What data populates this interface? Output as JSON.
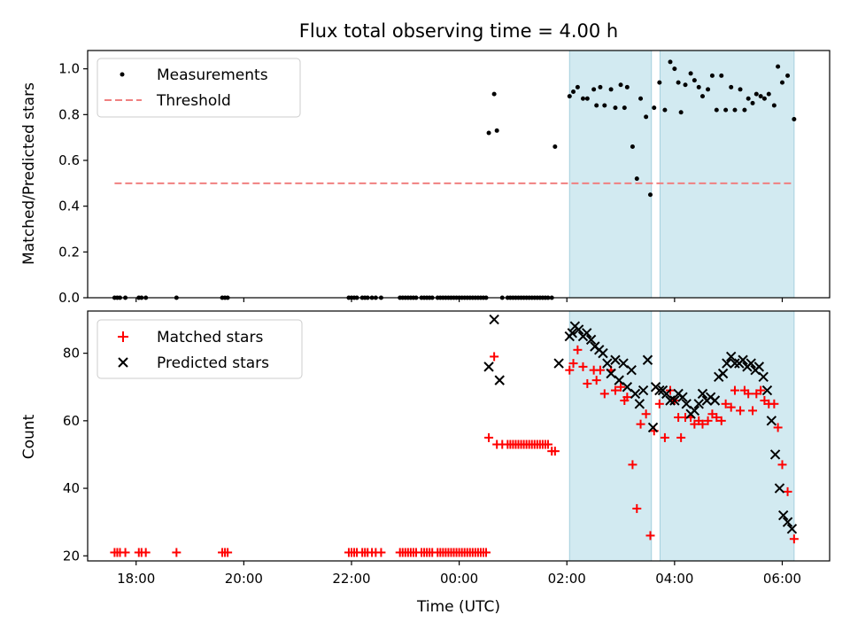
{
  "chart_data": [
    {
      "type": "scatter",
      "title": "Flux total observing time = 4.00 h",
      "xlabel": "",
      "ylabel": "Matched/Predicted stars",
      "xlim": [
        -6.9,
        6.88
      ],
      "ylim": [
        0.0,
        1.08
      ],
      "yticks": [
        0.0,
        0.2,
        0.4,
        0.6,
        0.8,
        1.0
      ],
      "ytick_labels": [
        "0.0",
        "0.2",
        "0.4",
        "0.6",
        "0.8",
        "1.0"
      ],
      "shaded_regions": [
        [
          2.05,
          3.57
        ],
        [
          3.73,
          6.22
        ]
      ],
      "series": [
        {
          "name": "Measurements",
          "marker": "dot",
          "color": "#000000",
          "x": [
            -6.4,
            -6.35,
            -6.3,
            -6.2,
            -5.95,
            -5.9,
            -5.82,
            -5.25,
            -4.4,
            -4.35,
            -4.3,
            -2.05,
            -2.0,
            -1.95,
            -1.9,
            -1.8,
            -1.75,
            -1.7,
            -1.62,
            -1.55,
            -1.45,
            -1.1,
            -1.05,
            -1.0,
            -0.95,
            -0.9,
            -0.85,
            -0.8,
            -0.7,
            -0.65,
            -0.6,
            -0.55,
            -0.5,
            -0.4,
            -0.35,
            -0.3,
            -0.25,
            -0.2,
            -0.15,
            -0.1,
            -0.05,
            0.0,
            0.05,
            0.1,
            0.15,
            0.2,
            0.25,
            0.3,
            0.35,
            0.4,
            0.45,
            0.5,
            0.55,
            0.65,
            0.7,
            0.8,
            0.9,
            0.95,
            1.0,
            1.05,
            1.1,
            1.15,
            1.2,
            1.25,
            1.3,
            1.35,
            1.4,
            1.45,
            1.5,
            1.55,
            1.6,
            1.65,
            1.72,
            1.78,
            2.05,
            2.12,
            2.2,
            2.3,
            2.38,
            2.5,
            2.55,
            2.62,
            2.7,
            2.82,
            2.9,
            3.0,
            3.07,
            3.12,
            3.22,
            3.3,
            3.37,
            3.47,
            3.55,
            3.62,
            3.72,
            3.82,
            3.92,
            4.0,
            4.07,
            4.12,
            4.2,
            4.3,
            4.37,
            4.45,
            4.52,
            4.62,
            4.7,
            4.78,
            4.87,
            4.95,
            5.05,
            5.12,
            5.22,
            5.3,
            5.37,
            5.45,
            5.52,
            5.6,
            5.67,
            5.75,
            5.85,
            5.92,
            6.0,
            6.1,
            6.22
          ],
          "y": [
            0.0,
            0.0,
            0.0,
            0.0,
            0.0,
            0.0,
            0.0,
            0.0,
            0.0,
            0.0,
            0.0,
            0.0,
            0.0,
            0.0,
            0.0,
            0.0,
            0.0,
            0.0,
            0.0,
            0.0,
            0.0,
            0.0,
            0.0,
            0.0,
            0.0,
            0.0,
            0.0,
            0.0,
            0.0,
            0.0,
            0.0,
            0.0,
            0.0,
            0.0,
            0.0,
            0.0,
            0.0,
            0.0,
            0.0,
            0.0,
            0.0,
            0.0,
            0.0,
            0.0,
            0.0,
            0.0,
            0.0,
            0.0,
            0.0,
            0.0,
            0.0,
            0.0,
            0.72,
            0.89,
            0.73,
            0.0,
            0.0,
            0.0,
            0.0,
            0.0,
            0.0,
            0.0,
            0.0,
            0.0,
            0.0,
            0.0,
            0.0,
            0.0,
            0.0,
            0.0,
            0.0,
            0.0,
            0.0,
            0.66,
            0.88,
            0.9,
            0.92,
            0.87,
            0.87,
            0.91,
            0.84,
            0.92,
            0.84,
            0.91,
            0.83,
            0.93,
            0.83,
            0.92,
            0.66,
            0.52,
            0.87,
            0.79,
            0.45,
            0.83,
            0.94,
            0.82,
            1.03,
            1.0,
            0.94,
            0.81,
            0.93,
            0.98,
            0.95,
            0.92,
            0.88,
            0.91,
            0.97,
            0.82,
            0.97,
            0.82,
            0.92,
            0.82,
            0.91,
            0.82,
            0.87,
            0.85,
            0.89,
            0.88,
            0.87,
            0.89,
            0.84,
            1.01,
            0.94,
            0.97,
            0.78
          ]
        },
        {
          "name": "Threshold",
          "line": "dashed",
          "color": "#f08080",
          "x": [
            -6.4,
            6.2
          ],
          "y": [
            0.5,
            0.5
          ]
        }
      ],
      "legend": {
        "position": "top-left",
        "entries": [
          "Measurements",
          "Threshold"
        ]
      }
    },
    {
      "type": "scatter",
      "title": "",
      "xlabel": "Time (UTC)",
      "ylabel": "Count",
      "xlim": [
        -6.9,
        6.88
      ],
      "ylim": [
        18.5,
        92.5
      ],
      "yticks": [
        20,
        40,
        60,
        80
      ],
      "ytick_labels": [
        "20",
        "40",
        "60",
        "80"
      ],
      "xticks": [
        -6,
        -4,
        -2,
        0,
        2,
        4,
        6
      ],
      "xtick_labels": [
        "18:00",
        "20:00",
        "22:00",
        "00:00",
        "02:00",
        "04:00",
        "06:00"
      ],
      "shaded_regions": [
        [
          2.05,
          3.57
        ],
        [
          3.73,
          6.22
        ]
      ],
      "series": [
        {
          "name": "Matched stars",
          "marker": "plus",
          "color": "#ff0000",
          "x": [
            -6.4,
            -6.35,
            -6.3,
            -6.2,
            -5.95,
            -5.9,
            -5.82,
            -5.25,
            -4.4,
            -4.35,
            -4.3,
            -2.05,
            -2.0,
            -1.95,
            -1.9,
            -1.8,
            -1.75,
            -1.7,
            -1.62,
            -1.55,
            -1.45,
            -1.1,
            -1.05,
            -1.0,
            -0.95,
            -0.9,
            -0.85,
            -0.8,
            -0.7,
            -0.65,
            -0.6,
            -0.55,
            -0.5,
            -0.4,
            -0.35,
            -0.3,
            -0.25,
            -0.2,
            -0.15,
            -0.1,
            -0.05,
            0.0,
            0.05,
            0.1,
            0.15,
            0.2,
            0.25,
            0.3,
            0.35,
            0.4,
            0.45,
            0.5,
            0.55,
            0.65,
            0.7,
            0.8,
            0.9,
            0.95,
            1.0,
            1.05,
            1.1,
            1.15,
            1.2,
            1.25,
            1.3,
            1.35,
            1.4,
            1.45,
            1.5,
            1.55,
            1.6,
            1.65,
            1.72,
            1.78,
            2.05,
            2.12,
            2.2,
            2.3,
            2.38,
            2.5,
            2.55,
            2.62,
            2.7,
            2.82,
            2.9,
            3.0,
            3.07,
            3.12,
            3.22,
            3.3,
            3.37,
            3.47,
            3.55,
            3.62,
            3.72,
            3.82,
            3.92,
            4.0,
            4.07,
            4.12,
            4.2,
            4.3,
            4.37,
            4.45,
            4.52,
            4.62,
            4.7,
            4.78,
            4.87,
            4.95,
            5.05,
            5.12,
            5.22,
            5.3,
            5.37,
            5.45,
            5.52,
            5.6,
            5.67,
            5.75,
            5.85,
            5.92,
            6.0,
            6.1,
            6.22
          ],
          "y": [
            21,
            21,
            21,
            21,
            21,
            21,
            21,
            21,
            21,
            21,
            21,
            21,
            21,
            21,
            21,
            21,
            21,
            21,
            21,
            21,
            21,
            21,
            21,
            21,
            21,
            21,
            21,
            21,
            21,
            21,
            21,
            21,
            21,
            21,
            21,
            21,
            21,
            21,
            21,
            21,
            21,
            21,
            21,
            21,
            21,
            21,
            21,
            21,
            21,
            21,
            21,
            21,
            55,
            79,
            53,
            53,
            53,
            53,
            53,
            53,
            53,
            53,
            53,
            53,
            53,
            53,
            53,
            53,
            53,
            53,
            53,
            53,
            51,
            51,
            75,
            77,
            81,
            76,
            71,
            75,
            72,
            75,
            68,
            75,
            69,
            70,
            66,
            67,
            47,
            34,
            59,
            62,
            26,
            57,
            65,
            55,
            69,
            66,
            61,
            55,
            61,
            61,
            59,
            60,
            59,
            60,
            62,
            61,
            60,
            65,
            64,
            69,
            63,
            69,
            68,
            63,
            68,
            69,
            66,
            65,
            65,
            58,
            47,
            39,
            25
          ]
        },
        {
          "name": "Predicted stars",
          "marker": "x",
          "color": "#000000",
          "x": [
            0.55,
            0.65,
            0.75,
            1.85,
            2.05,
            2.1,
            2.15,
            2.22,
            2.3,
            2.37,
            2.45,
            2.52,
            2.6,
            2.67,
            2.75,
            2.82,
            2.9,
            2.97,
            3.05,
            3.12,
            3.2,
            3.27,
            3.35,
            3.42,
            3.5,
            3.6,
            3.65,
            3.72,
            3.78,
            3.85,
            3.92,
            4.0,
            4.07,
            4.15,
            4.22,
            4.3,
            4.37,
            4.45,
            4.52,
            4.6,
            4.67,
            4.75,
            4.82,
            4.9,
            4.97,
            5.05,
            5.12,
            5.2,
            5.27,
            5.35,
            5.42,
            5.5,
            5.57,
            5.65,
            5.72,
            5.8,
            5.87,
            5.95,
            6.02,
            6.1,
            6.18
          ],
          "y": [
            76,
            90,
            72,
            77,
            85,
            86,
            88,
            87,
            85,
            86,
            84,
            82,
            81,
            80,
            77,
            74,
            78,
            72,
            77,
            70,
            75,
            68,
            65,
            69,
            78,
            58,
            70,
            69,
            69,
            68,
            66,
            66,
            68,
            67,
            65,
            62,
            63,
            65,
            68,
            66,
            67,
            66,
            73,
            74,
            77,
            79,
            77,
            77,
            78,
            76,
            77,
            75,
            76,
            73,
            69,
            60,
            50,
            40,
            32,
            30,
            28
          ]
        }
      ],
      "legend": {
        "position": "top-left",
        "entries": [
          "Matched stars",
          "Predicted stars"
        ]
      }
    }
  ]
}
